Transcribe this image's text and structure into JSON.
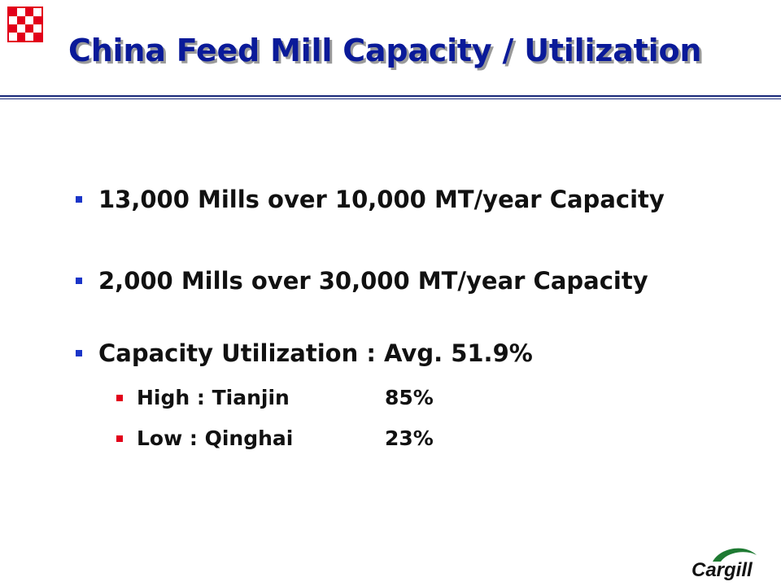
{
  "slide": {
    "title": "China Feed Mill Capacity / Utilization",
    "bullets": [
      {
        "text": "13,000 Mills over 10,000 MT/year Capacity"
      },
      {
        "text": "2,000 Mills over 30,000 MT/year Capacity"
      },
      {
        "text": "Capacity Utilization : Avg. 51.9%"
      }
    ],
    "sub_bullets": [
      {
        "label": "High : Tianjin",
        "value": "85%"
      },
      {
        "label": "Low : Qinghai",
        "value": "23%"
      }
    ]
  },
  "branding": {
    "logo_text": "Cargill",
    "accent_red": "#e2001a",
    "title_blue": "#0a1a99",
    "bullet_blue": "#1a35c8",
    "logo_green": "#1e7a32"
  }
}
